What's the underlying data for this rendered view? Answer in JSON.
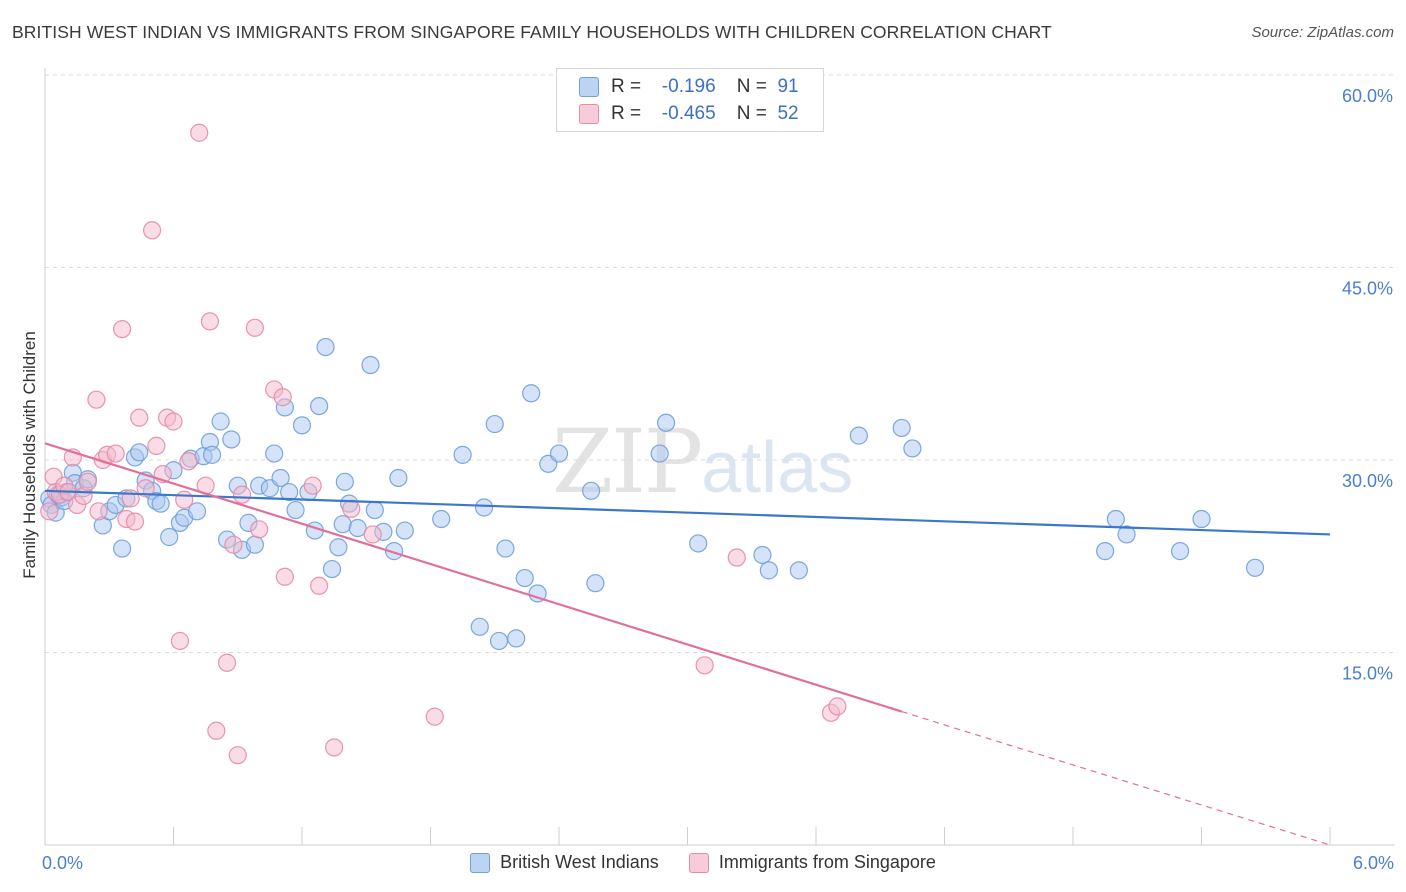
{
  "title": "BRITISH WEST INDIAN VS IMMIGRANTS FROM SINGAPORE FAMILY HOUSEHOLDS WITH CHILDREN CORRELATION CHART",
  "source": "Source: ZipAtlas.com",
  "watermark": {
    "zip": "ZIP",
    "atlas": "atlas"
  },
  "legend_top": [
    {
      "r_label": "R =",
      "r_value": "-0.196",
      "n_label": "N =",
      "n_value": "91"
    },
    {
      "r_label": "R =",
      "r_value": "-0.465",
      "n_label": "N =",
      "n_value": "52"
    }
  ],
  "colors": {
    "blue_fill": "#a9c8ef",
    "blue_stroke": "#6f9fdc",
    "blue_line": "#3a78c9",
    "pink_fill": "#f4b9cc",
    "pink_stroke": "#e58aa9",
    "pink_line": "#e0709a",
    "grid": "#d9d9d9",
    "tick_text": "#4a7ed1"
  },
  "chart_data": {
    "type": "scatter",
    "title": "BRITISH WEST INDIAN VS IMMIGRANTS FROM SINGAPORE FAMILY HOUSEHOLDS WITH CHILDREN CORRELATION CHART",
    "xlabel": "",
    "ylabel": "Family Households with Children",
    "xlim": [
      0,
      6.0
    ],
    "ylim": [
      0,
      60
    ],
    "x_tick_labels": [
      "0.0%",
      "6.0%"
    ],
    "y_ticks": [
      15,
      30,
      45,
      60
    ],
    "y_tick_labels": [
      "15.0%",
      "30.0%",
      "45.0%",
      "60.0%"
    ],
    "grid": true,
    "legend_position": "bottom",
    "series": [
      {
        "name": "British West Indians",
        "color": "#6f9fdc",
        "r": -0.196,
        "n": 91,
        "trend": {
          "x": [
            0.0,
            6.0
          ],
          "y": [
            27.6,
            24.2
          ]
        },
        "points": [
          [
            0.02,
            27.0
          ],
          [
            0.03,
            26.5
          ],
          [
            0.05,
            25.9
          ],
          [
            0.06,
            27.3
          ],
          [
            0.08,
            27.1
          ],
          [
            0.09,
            26.8
          ],
          [
            0.1,
            27.5
          ],
          [
            0.13,
            29.0
          ],
          [
            0.14,
            28.2
          ],
          [
            0.18,
            27.8
          ],
          [
            0.2,
            28.5
          ],
          [
            0.27,
            24.9
          ],
          [
            0.3,
            26.0
          ],
          [
            0.33,
            26.5
          ],
          [
            0.36,
            23.1
          ],
          [
            0.38,
            27.0
          ],
          [
            0.42,
            30.2
          ],
          [
            0.44,
            30.6
          ],
          [
            0.47,
            28.4
          ],
          [
            0.5,
            27.6
          ],
          [
            0.52,
            26.8
          ],
          [
            0.54,
            26.6
          ],
          [
            0.58,
            24.0
          ],
          [
            0.6,
            29.2
          ],
          [
            0.63,
            25.1
          ],
          [
            0.65,
            25.5
          ],
          [
            0.68,
            30.1
          ],
          [
            0.71,
            26.0
          ],
          [
            0.74,
            30.3
          ],
          [
            0.77,
            31.4
          ],
          [
            0.78,
            30.4
          ],
          [
            0.82,
            33.0
          ],
          [
            0.85,
            23.8
          ],
          [
            0.87,
            31.6
          ],
          [
            0.9,
            28.0
          ],
          [
            0.92,
            23.0
          ],
          [
            0.95,
            25.1
          ],
          [
            0.98,
            23.4
          ],
          [
            1.0,
            28.0
          ],
          [
            1.05,
            27.8
          ],
          [
            1.07,
            30.5
          ],
          [
            1.1,
            28.6
          ],
          [
            1.12,
            34.1
          ],
          [
            1.14,
            27.5
          ],
          [
            1.17,
            26.1
          ],
          [
            1.2,
            32.7
          ],
          [
            1.23,
            27.5
          ],
          [
            1.26,
            24.5
          ],
          [
            1.28,
            34.2
          ],
          [
            1.31,
            38.8
          ],
          [
            1.34,
            21.5
          ],
          [
            1.37,
            23.2
          ],
          [
            1.39,
            25.0
          ],
          [
            1.4,
            28.3
          ],
          [
            1.42,
            26.6
          ],
          [
            1.46,
            24.7
          ],
          [
            1.52,
            37.4
          ],
          [
            1.54,
            26.1
          ],
          [
            1.58,
            24.4
          ],
          [
            1.63,
            22.9
          ],
          [
            1.65,
            28.6
          ],
          [
            1.68,
            24.5
          ],
          [
            1.85,
            25.4
          ],
          [
            1.95,
            30.4
          ],
          [
            2.03,
            17.0
          ],
          [
            2.05,
            26.3
          ],
          [
            2.1,
            32.8
          ],
          [
            2.12,
            15.9
          ],
          [
            2.15,
            23.1
          ],
          [
            2.2,
            16.1
          ],
          [
            2.24,
            20.8
          ],
          [
            2.27,
            35.2
          ],
          [
            2.3,
            19.6
          ],
          [
            2.35,
            29.7
          ],
          [
            2.4,
            30.5
          ],
          [
            2.55,
            27.6
          ],
          [
            2.57,
            20.4
          ],
          [
            2.87,
            30.5
          ],
          [
            2.9,
            32.9
          ],
          [
            3.05,
            23.5
          ],
          [
            3.35,
            22.6
          ],
          [
            3.38,
            21.4
          ],
          [
            3.52,
            21.4
          ],
          [
            3.8,
            31.9
          ],
          [
            4.0,
            32.5
          ],
          [
            4.05,
            30.9
          ],
          [
            4.95,
            22.9
          ],
          [
            5.0,
            25.4
          ],
          [
            5.05,
            24.2
          ],
          [
            5.3,
            22.9
          ],
          [
            5.4,
            25.4
          ],
          [
            5.65,
            21.6
          ]
        ]
      },
      {
        "name": "Immigrants from Singapore",
        "color": "#e58aa9",
        "r": -0.465,
        "n": 52,
        "trend": {
          "x": [
            0.0,
            4.0
          ],
          "y": [
            31.3,
            10.4
          ]
        },
        "trend_extension": {
          "x": [
            4.0,
            6.0
          ],
          "y": [
            10.4,
            0.0
          ]
        },
        "points": [
          [
            0.02,
            26.0
          ],
          [
            0.04,
            28.7
          ],
          [
            0.05,
            27.5
          ],
          [
            0.07,
            27.3
          ],
          [
            0.09,
            28.0
          ],
          [
            0.11,
            27.5
          ],
          [
            0.13,
            30.2
          ],
          [
            0.15,
            26.5
          ],
          [
            0.18,
            27.2
          ],
          [
            0.2,
            28.3
          ],
          [
            0.24,
            34.7
          ],
          [
            0.25,
            26.0
          ],
          [
            0.27,
            30.0
          ],
          [
            0.29,
            30.4
          ],
          [
            0.33,
            30.5
          ],
          [
            0.36,
            40.2
          ],
          [
            0.38,
            25.4
          ],
          [
            0.42,
            25.2
          ],
          [
            0.44,
            33.3
          ],
          [
            0.47,
            27.8
          ],
          [
            0.5,
            47.9
          ],
          [
            0.52,
            31.1
          ],
          [
            0.55,
            28.9
          ],
          [
            0.57,
            33.3
          ],
          [
            0.6,
            33.0
          ],
          [
            0.63,
            15.9
          ],
          [
            0.67,
            29.9
          ],
          [
            0.72,
            55.5
          ],
          [
            0.75,
            28.0
          ],
          [
            0.77,
            40.8
          ],
          [
            0.8,
            8.9
          ],
          [
            0.85,
            14.2
          ],
          [
            0.88,
            23.4
          ],
          [
            0.9,
            7.0
          ],
          [
            0.92,
            27.3
          ],
          [
            0.98,
            40.3
          ],
          [
            1.0,
            24.6
          ],
          [
            1.07,
            35.5
          ],
          [
            1.11,
            34.9
          ],
          [
            1.12,
            20.9
          ],
          [
            1.25,
            28.0
          ],
          [
            1.28,
            20.2
          ],
          [
            1.35,
            7.6
          ],
          [
            1.43,
            26.2
          ],
          [
            1.53,
            24.2
          ],
          [
            1.82,
            10.0
          ],
          [
            3.08,
            14.0
          ],
          [
            3.23,
            22.4
          ],
          [
            3.67,
            10.3
          ],
          [
            3.7,
            10.8
          ],
          [
            0.65,
            26.9
          ],
          [
            0.4,
            27.0
          ]
        ]
      }
    ]
  }
}
